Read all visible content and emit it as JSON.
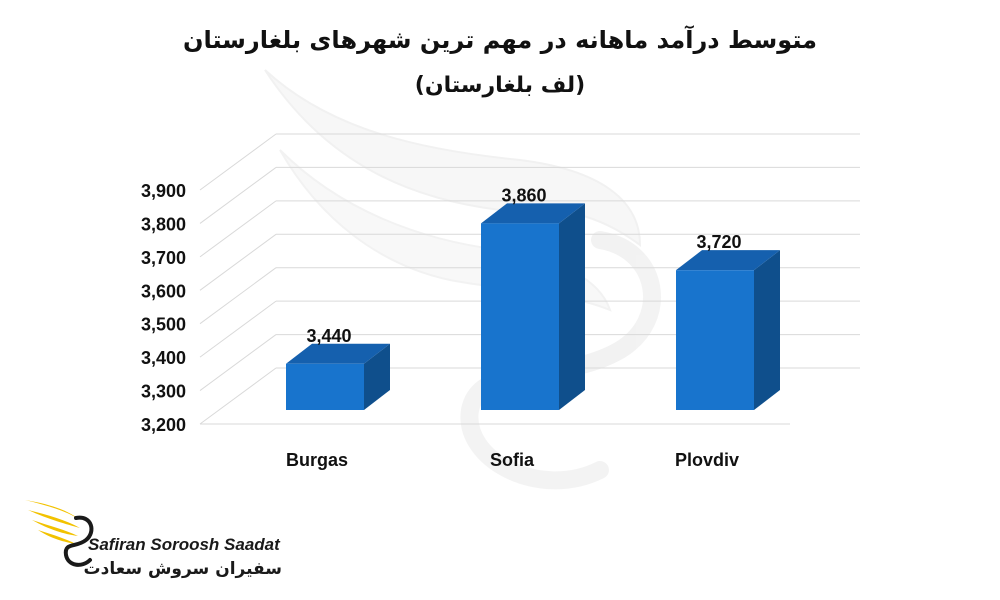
{
  "chart_data": {
    "type": "bar",
    "title": "متوسط درآمد ماهانه در مهم ترین شهرهای بلغارستان",
    "subtitle": "(لف بلغارستان)",
    "categories": [
      "Burgas",
      "Sofia",
      "Plovdiv"
    ],
    "values": [
      3440,
      3860,
      3720
    ],
    "value_labels": [
      "3,440",
      "3,860",
      "3,720"
    ],
    "y_ticks": [
      "3,200",
      "3,300",
      "3,400",
      "3,500",
      "3,600",
      "3,700",
      "3,800",
      "3,900"
    ],
    "ylim": [
      3200,
      3900
    ],
    "grid": true,
    "legend": "none",
    "style": "3d-column"
  },
  "colors": {
    "bar_front": "#1874CD",
    "bar_side": "#0F4F8C",
    "bar_top": "#1560AE",
    "grid": "#d9d9d9",
    "logo_gold": "#F2C200"
  },
  "logo": {
    "latin": "Safiran Soroosh Saadat",
    "farsi": "سفیران سروش سعادت"
  }
}
